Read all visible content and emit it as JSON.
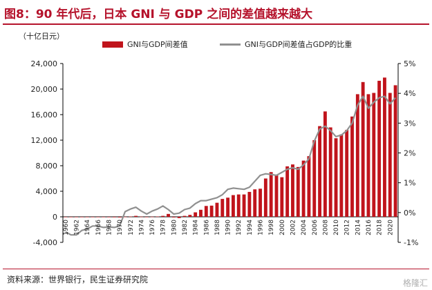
{
  "header": {
    "title": "图8：90 年代后，日本 GNI 与 GDP 之间的差值越来越大"
  },
  "footer": {
    "source": "资料来源：世界银行，民生证券研究院",
    "watermark": "格隆汇"
  },
  "colors": {
    "bar": "#c0141c",
    "line": "#909090",
    "title": "#b5122b"
  },
  "chart_data": {
    "type": "bar",
    "unit_label": "（十亿日元）",
    "legend": [
      "GNI与GDP间差值",
      "GNI与GDP间差值占GDP的比重"
    ],
    "x_tick_labels": [
      "1960",
      "1962",
      "1964",
      "1966",
      "1968",
      "1970",
      "1972",
      "1974",
      "1976",
      "1978",
      "1980",
      "1982",
      "1984",
      "1986",
      "1988",
      "1990",
      "1992",
      "1994",
      "1996",
      "1998",
      "2000",
      "2002",
      "2004",
      "2006",
      "2008",
      "2010",
      "2012",
      "2014",
      "2016",
      "2018",
      "2020"
    ],
    "y_left": {
      "ylim": [
        -4000,
        24000
      ],
      "ticks": [
        "-4,000",
        "0",
        "4,000",
        "8,000",
        "12,000",
        "16,000",
        "20,000",
        "24,000"
      ]
    },
    "y_right": {
      "ylim": [
        -1,
        5
      ],
      "ticks": [
        "-1%",
        "0%",
        "1%",
        "2%",
        "3%",
        "4%",
        "5%"
      ]
    },
    "categories": [
      1960,
      1961,
      1962,
      1963,
      1964,
      1965,
      1966,
      1967,
      1968,
      1969,
      1970,
      1971,
      1972,
      1973,
      1974,
      1975,
      1976,
      1977,
      1978,
      1979,
      1980,
      1981,
      1982,
      1983,
      1984,
      1985,
      1986,
      1987,
      1988,
      1989,
      1990,
      1991,
      1992,
      1993,
      1994,
      1995,
      1996,
      1997,
      1998,
      1999,
      2000,
      2001,
      2002,
      2003,
      2004,
      2005,
      2006,
      2007,
      2008,
      2009,
      2010,
      2011,
      2012,
      2013,
      2014,
      2015,
      2016,
      2017,
      2018,
      2019,
      2020,
      2021
    ],
    "series": [
      {
        "name": "GNI与GDP间差值",
        "type": "bar",
        "axis": "left",
        "values": [
          -20,
          -20,
          -25,
          -30,
          -40,
          -40,
          -50,
          -60,
          -70,
          -80,
          -100,
          10,
          50,
          150,
          30,
          -60,
          20,
          50,
          150,
          450,
          -100,
          -200,
          150,
          300,
          700,
          1100,
          1700,
          1750,
          2200,
          2800,
          3000,
          3400,
          3500,
          3500,
          3900,
          4300,
          4400,
          6000,
          7000,
          6500,
          6200,
          7900,
          8200,
          7800,
          8800,
          9500,
          12000,
          14200,
          16500,
          14000,
          12300,
          12900,
          13600,
          15700,
          19200,
          21100,
          19200,
          19400,
          21300,
          21800,
          19400,
          20600
        ]
      },
      {
        "name": "GNI与GDP间差值占GDP的比重",
        "type": "line",
        "axis": "right",
        "values": [
          -0.65,
          -0.75,
          -0.75,
          -0.6,
          -0.55,
          -0.45,
          -0.45,
          -0.5,
          -0.48,
          -0.5,
          -0.45,
          0.03,
          0.12,
          0.18,
          0.05,
          -0.05,
          0.05,
          0.12,
          0.22,
          0.1,
          -0.05,
          -0.02,
          0.1,
          0.15,
          0.3,
          0.4,
          0.4,
          0.45,
          0.5,
          0.6,
          0.78,
          0.82,
          0.8,
          0.78,
          0.85,
          1.05,
          1.25,
          1.3,
          1.28,
          1.25,
          1.35,
          1.45,
          1.5,
          1.45,
          1.6,
          1.8,
          2.4,
          2.8,
          2.9,
          2.75,
          2.55,
          2.6,
          2.75,
          3.0,
          3.6,
          3.9,
          3.5,
          3.7,
          3.85,
          3.9,
          3.65,
          3.85
        ]
      }
    ]
  }
}
